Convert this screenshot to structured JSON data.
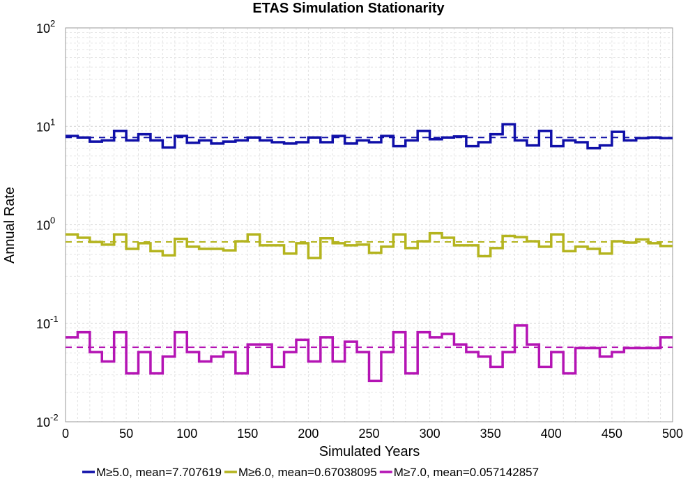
{
  "chart_data": {
    "type": "line",
    "title": "ETAS Simulation Stationarity",
    "xlabel": "Simulated Years",
    "ylabel": "Annual Rate",
    "xlim": [
      0,
      500
    ],
    "ylim": [
      0.01,
      100
    ],
    "yscale": "log",
    "grid": true,
    "legend_position": "bottom",
    "x_ticks": [
      "0",
      "50",
      "100",
      "150",
      "200",
      "250",
      "300",
      "350",
      "400",
      "450",
      "500"
    ],
    "y_ticks": [
      {
        "base": "10",
        "exp": "-2"
      },
      {
        "base": "10",
        "exp": "-1"
      },
      {
        "base": "10",
        "exp": "0"
      },
      {
        "base": "10",
        "exp": "1"
      },
      {
        "base": "10",
        "exp": "2"
      }
    ],
    "bin_width": 10,
    "series": [
      {
        "name": "M≥5.0, mean=7.707619",
        "color": "#0f0fa8",
        "mean": 7.707619,
        "values": [
          8.0,
          7.7,
          7.0,
          7.2,
          9.0,
          7.2,
          8.3,
          7.2,
          6.1,
          8.0,
          6.8,
          7.2,
          6.7,
          7.0,
          7.2,
          7.7,
          7.2,
          6.9,
          6.7,
          6.9,
          7.7,
          6.9,
          8.0,
          6.7,
          7.2,
          6.9,
          8.0,
          6.3,
          7.2,
          9.0,
          7.4,
          7.7,
          7.9,
          6.3,
          6.9,
          8.3,
          10.5,
          7.2,
          6.4,
          9.0,
          6.3,
          7.2,
          6.9,
          6.0,
          6.4,
          8.8,
          7.2,
          7.6,
          7.7,
          7.6
        ]
      },
      {
        "name": "M≥6.0, mean=0.67038095",
        "color": "#b4b41e",
        "mean": 0.67038095,
        "values": [
          0.8,
          0.74,
          0.67,
          0.63,
          0.8,
          0.57,
          0.65,
          0.54,
          0.49,
          0.72,
          0.6,
          0.57,
          0.57,
          0.55,
          0.68,
          0.8,
          0.62,
          0.62,
          0.51,
          0.65,
          0.46,
          0.73,
          0.65,
          0.62,
          0.63,
          0.52,
          0.6,
          0.8,
          0.58,
          0.68,
          0.82,
          0.74,
          0.62,
          0.62,
          0.48,
          0.58,
          0.77,
          0.75,
          0.68,
          0.6,
          0.8,
          0.54,
          0.6,
          0.57,
          0.51,
          0.68,
          0.66,
          0.71,
          0.65,
          0.61
        ]
      },
      {
        "name": "M≥7.0, mean=0.057142857",
        "color": "#b414b4",
        "mean": 0.057142857,
        "values": [
          0.072,
          0.081,
          0.051,
          0.041,
          0.081,
          0.031,
          0.051,
          0.031,
          0.046,
          0.081,
          0.051,
          0.041,
          0.046,
          0.051,
          0.031,
          0.061,
          0.061,
          0.036,
          0.051,
          0.068,
          0.041,
          0.072,
          0.041,
          0.065,
          0.051,
          0.026,
          0.051,
          0.081,
          0.031,
          0.081,
          0.072,
          0.078,
          0.061,
          0.051,
          0.046,
          0.036,
          0.051,
          0.095,
          0.061,
          0.036,
          0.051,
          0.031,
          0.056,
          0.056,
          0.046,
          0.051,
          0.056,
          0.056,
          0.056,
          0.072
        ]
      }
    ]
  }
}
